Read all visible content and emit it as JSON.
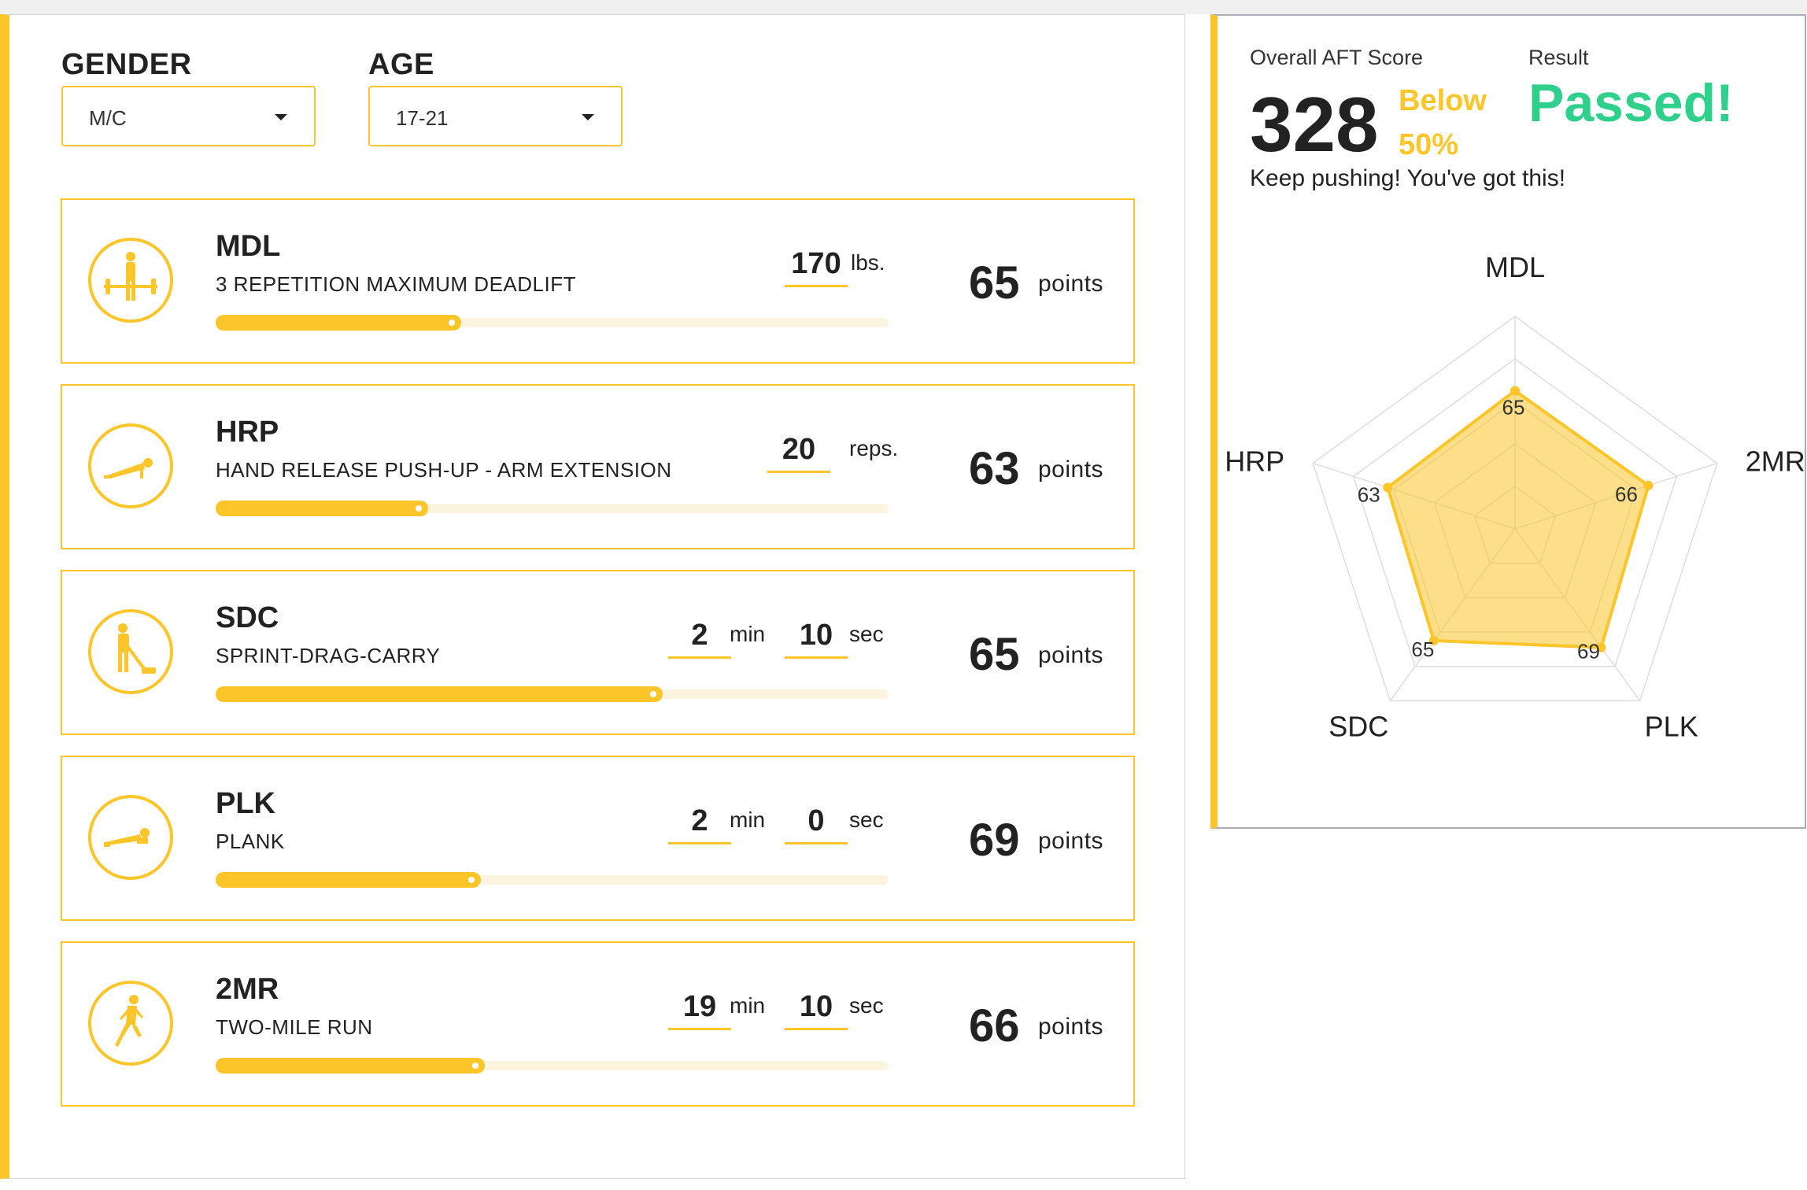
{
  "filters": {
    "gender_label": "GENDER",
    "gender_value": "M/C",
    "age_label": "AGE",
    "age_value": "17-21"
  },
  "events": [
    {
      "code": "MDL",
      "name": "3 REPETITION MAXIMUM DEADLIFT",
      "inputs": [
        {
          "value": "170",
          "unit": "lbs."
        }
      ],
      "points": "65",
      "points_label": "points",
      "progress": 0.365,
      "icon": "deadlift-icon"
    },
    {
      "code": "HRP",
      "name": "HAND RELEASE PUSH-UP - ARM EXTENSION",
      "inputs": [
        {
          "value": "20",
          "unit": "reps."
        }
      ],
      "points": "63",
      "points_label": "points",
      "progress": 0.315,
      "icon": "push-up-icon"
    },
    {
      "code": "SDC",
      "name": "SPRINT-DRAG-CARRY",
      "inputs": [
        {
          "value": "2",
          "unit": "min"
        },
        {
          "value": "10",
          "unit": "sec"
        }
      ],
      "points": "65",
      "points_label": "points",
      "progress": 0.665,
      "icon": "sled-drag-icon"
    },
    {
      "code": "PLK",
      "name": "PLANK",
      "inputs": [
        {
          "value": "2",
          "unit": "min"
        },
        {
          "value": "0",
          "unit": "sec"
        }
      ],
      "points": "69",
      "points_label": "points",
      "progress": 0.395,
      "icon": "plank-icon"
    },
    {
      "code": "2MR",
      "name": "TWO-MILE RUN",
      "inputs": [
        {
          "value": "19",
          "unit": "min"
        },
        {
          "value": "10",
          "unit": "sec"
        }
      ],
      "points": "66",
      "points_label": "points",
      "progress": 0.4,
      "icon": "runner-icon"
    }
  ],
  "summary": {
    "score_label": "Overall AFT Score",
    "score": "328",
    "percentile_line1": "Below",
    "percentile_line2": "50%",
    "result_label": "Result",
    "result": "Passed!",
    "message": "Keep pushing! You've got this!"
  },
  "chart_data": {
    "type": "radar",
    "categories": [
      "MDL",
      "2MR",
      "PLK",
      "SDC",
      "HRP"
    ],
    "values": [
      65,
      66,
      69,
      65,
      63
    ],
    "range": [
      0,
      100
    ],
    "grid_levels": 5,
    "series_color": "#fcc52a"
  }
}
